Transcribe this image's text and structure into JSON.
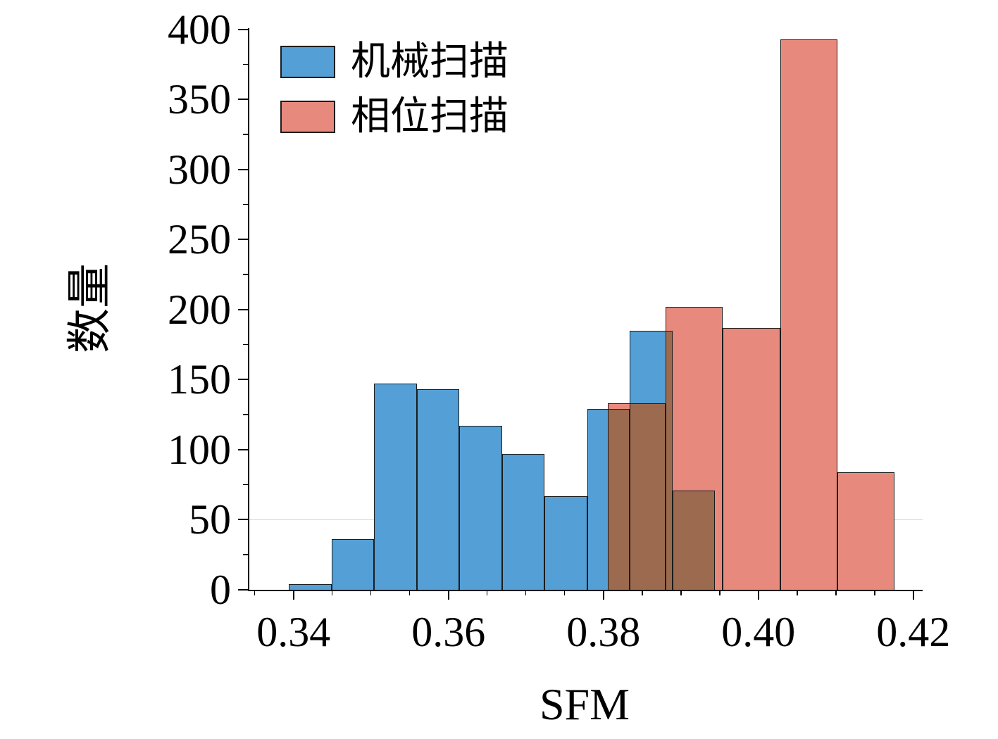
{
  "figure": {
    "background": "#ffffff",
    "axis_color": "#000000"
  },
  "chart_data": {
    "type": "histogram",
    "title": "",
    "xlabel": "SFM",
    "ylabel": "数量",
    "xlim": [
      0.3343,
      0.4212
    ],
    "ylim": [
      0,
      401
    ],
    "grid": "single faint horizontal line at y=50",
    "gridline_y": 50,
    "gridline_color": "#d9d9d9",
    "legend_position": "upper left",
    "legend": [
      {
        "label": "机械扫描",
        "color": "#549FD5"
      },
      {
        "label": "相位扫描",
        "color": "#E78A7D"
      }
    ],
    "x_major_ticks": [
      0.34,
      0.36,
      0.38,
      0.4,
      0.42
    ],
    "x_major_tick_labels": [
      "0.34",
      "0.36",
      "0.38",
      "0.40",
      "0.42"
    ],
    "x_minor_tick_step": 0.005,
    "y_major_ticks": [
      0,
      50,
      100,
      150,
      200,
      250,
      300,
      350,
      400
    ],
    "y_major_tick_labels": [
      "0",
      "50",
      "100",
      "150",
      "200",
      "250",
      "300",
      "350",
      "400"
    ],
    "y_minor_tick_step": 25,
    "series": [
      {
        "name": "机械扫描",
        "fill": "#549FD5",
        "bin_start": 0.3394,
        "bin_width": 0.0055,
        "counts": [
          4,
          36,
          147,
          143,
          117,
          97,
          67,
          129,
          185,
          71
        ]
      },
      {
        "name": "相位扫描",
        "fill": "#E78A7D",
        "bin_start": 0.3806,
        "bin_width": 0.0074,
        "counts": [
          133,
          202,
          187,
          393,
          84
        ]
      }
    ],
    "overlap_fill": "#9C6A4F",
    "bar_edge": "#1c1c1c"
  }
}
